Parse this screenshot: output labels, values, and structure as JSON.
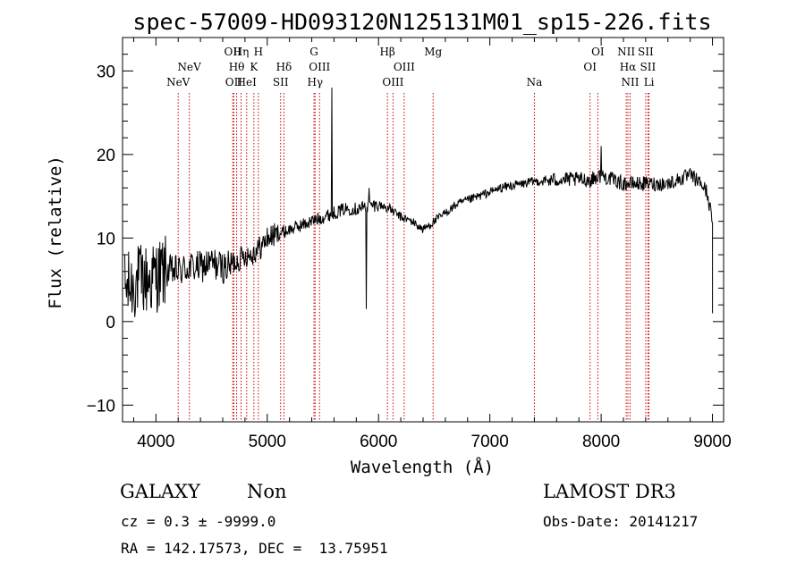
{
  "chart_data": {
    "type": "line",
    "title": "spec-57009-HD093120N125131M01_sp15-226.fits",
    "xlabel": "Wavelength (Å)",
    "ylabel": "Flux (relative)",
    "xlim": [
      3700,
      9100
    ],
    "ylim": [
      -12,
      34
    ],
    "xticks": [
      4000,
      5000,
      6000,
      7000,
      8000,
      9000
    ],
    "yticks": [
      -10,
      0,
      10,
      20,
      30
    ],
    "line_color": "#000000",
    "marker_color": "#cc0000",
    "spectrum_anchors": {
      "x": [
        3700,
        3750,
        3800,
        3850,
        3900,
        3950,
        4000,
        4100,
        4200,
        4300,
        4400,
        4500,
        4600,
        4650,
        4700,
        4750,
        4800,
        4850,
        4900,
        4950,
        5000,
        5100,
        5200,
        5300,
        5400,
        5500,
        5600,
        5700,
        5800,
        5900,
        6000,
        6100,
        6200,
        6300,
        6400,
        6500,
        6600,
        6700,
        6800,
        6900,
        7000,
        7100,
        7200,
        7300,
        7400,
        7500,
        7600,
        7700,
        7800,
        7900,
        8000,
        8100,
        8200,
        8300,
        8400,
        8500,
        8600,
        8700,
        8800,
        8900,
        8950,
        9000
      ],
      "y": [
        4,
        4,
        4.5,
        5,
        5,
        5,
        5.5,
        6,
        6,
        6.5,
        6.5,
        7,
        6.5,
        6.5,
        7,
        7.5,
        8,
        8,
        8.5,
        9,
        10,
        10.5,
        11,
        11.5,
        12,
        12.5,
        13,
        13.5,
        13.5,
        13.8,
        14,
        13.5,
        12.5,
        12,
        11,
        12,
        13,
        14,
        14.5,
        15,
        15.5,
        16,
        16.3,
        16.5,
        16.8,
        16.8,
        17,
        17,
        17,
        17,
        17.5,
        17,
        16.5,
        16.5,
        16.5,
        16.5,
        16.5,
        17,
        17.5,
        16.5,
        15.5,
        12
      ]
    },
    "spectrum_features": [
      {
        "x": 5580,
        "y": 28
      },
      {
        "x": 5890,
        "y": 1.5
      },
      {
        "x": 5915,
        "y": 16
      },
      {
        "x": 7900,
        "y": 16
      },
      {
        "x": 8000,
        "y": 21
      }
    ],
    "lines": [
      {
        "name": "NeV",
        "wavelength": 4200,
        "row": 3
      },
      {
        "name": "NeV",
        "wavelength": 4300,
        "row": 2
      },
      {
        "name": "OII",
        "wavelength": 4690,
        "row": 1
      },
      {
        "name": "OII",
        "wavelength": 4700,
        "row": 3
      },
      {
        "name": "Hθ",
        "wavelength": 4725,
        "row": 2
      },
      {
        "name": "Hη",
        "wavelength": 4765,
        "row": 1
      },
      {
        "name": "HeI",
        "wavelength": 4815,
        "row": 3
      },
      {
        "name": "K",
        "wavelength": 4880,
        "row": 2
      },
      {
        "name": "H",
        "wavelength": 4920,
        "row": 1
      },
      {
        "name": "SII",
        "wavelength": 5120,
        "row": 3
      },
      {
        "name": "Hδ",
        "wavelength": 5150,
        "row": 2
      },
      {
        "name": "G",
        "wavelength": 5420,
        "row": 1
      },
      {
        "name": "Hγ",
        "wavelength": 5430,
        "row": 3
      },
      {
        "name": "OIII",
        "wavelength": 5470,
        "row": 2
      },
      {
        "name": "Hβ",
        "wavelength": 6080,
        "row": 1
      },
      {
        "name": "OIII",
        "wavelength": 6130,
        "row": 3
      },
      {
        "name": "OIII",
        "wavelength": 6230,
        "row": 2
      },
      {
        "name": "Mg",
        "wavelength": 6490,
        "row": 1
      },
      {
        "name": "Na",
        "wavelength": 7400,
        "row": 3
      },
      {
        "name": "OI",
        "wavelength": 7900,
        "row": 2
      },
      {
        "name": "OI",
        "wavelength": 7970,
        "row": 1
      },
      {
        "name": "NII",
        "wavelength": 8225,
        "row": 1
      },
      {
        "name": "Hα",
        "wavelength": 8240,
        "row": 2
      },
      {
        "name": "NII",
        "wavelength": 8260,
        "row": 3
      },
      {
        "name": "SII",
        "wavelength": 8400,
        "row": 1
      },
      {
        "name": "SII",
        "wavelength": 8420,
        "row": 2
      },
      {
        "name": "Li",
        "wavelength": 8430,
        "row": 3
      }
    ]
  },
  "info": {
    "class": "GALAXY",
    "subclass": "Non",
    "survey": "LAMOST DR3",
    "cz_line": "cz = 0.3 ± -9999.0",
    "obs_date": "Obs-Date: 20141217",
    "radec_line": "RA = 142.17573, DEC =  13.75951"
  }
}
